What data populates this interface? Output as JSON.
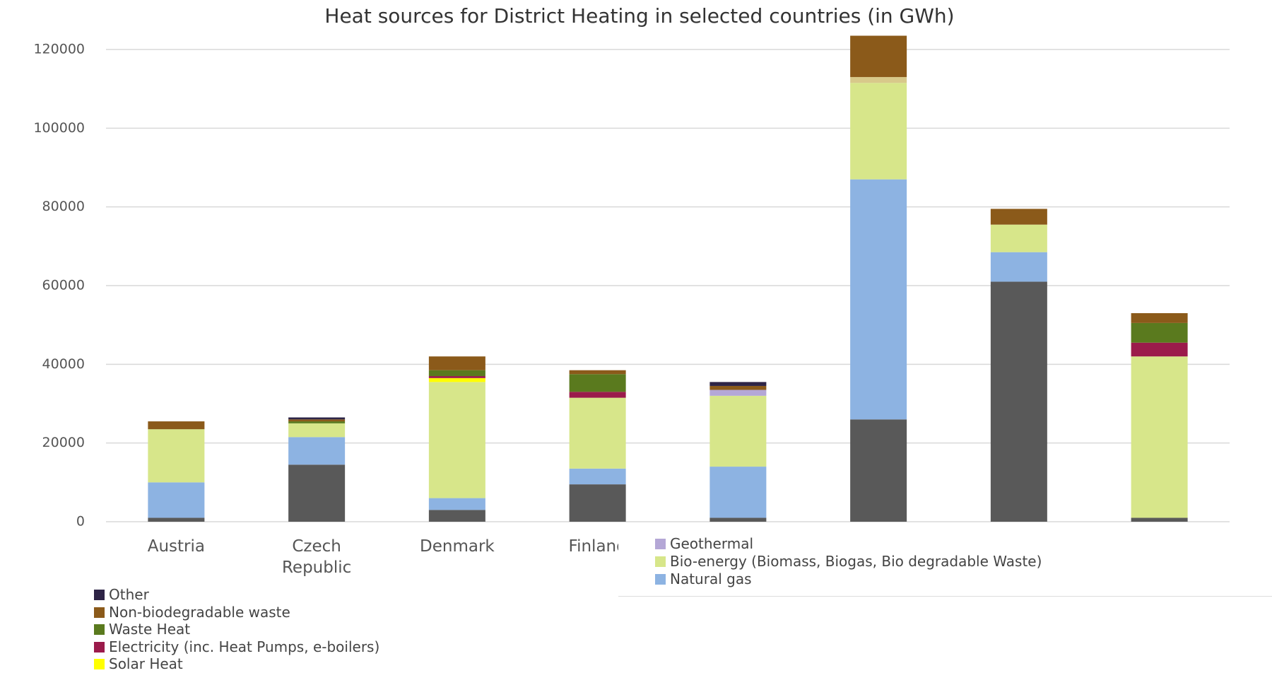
{
  "chart_data": {
    "type": "stacked_bar",
    "title": "Heat sources for District Heating in selected countries (in GWh)",
    "categories": [
      "Austria",
      "Czech Republic",
      "Denmark",
      "Finland",
      null,
      null,
      null,
      null
    ],
    "ylim": [
      0,
      120000
    ],
    "yticks": [
      0,
      20000,
      40000,
      60000,
      80000,
      100000,
      120000
    ],
    "grid": true,
    "series": [
      {
        "color": "#595959",
        "values": [
          1000,
          14500,
          3000,
          9500,
          1000,
          26000,
          61000,
          1000
        ]
      },
      {
        "name": "Natural gas",
        "color": "#8db3e2",
        "values": [
          9000,
          7000,
          3000,
          4000,
          13000,
          61000,
          7500,
          0
        ]
      },
      {
        "name": "Bio-energy (Biomass, Biogas, Bio degradable Waste)",
        "color": "#d7e68a",
        "values": [
          13500,
          3500,
          29500,
          18000,
          18000,
          24500,
          7000,
          41000
        ]
      },
      {
        "name": "Geothermal",
        "color": "#b4a7d6",
        "values": [
          0,
          0,
          0,
          0,
          1500,
          0,
          0,
          0
        ]
      },
      {
        "name": "Solar Heat",
        "color": "#ffff00",
        "values": [
          0,
          0,
          1000,
          0,
          0,
          0,
          0,
          0
        ]
      },
      {
        "name": "Electricity (inc. Heat Pumps, e-boilers)",
        "color": "#9b1b4b",
        "values": [
          0,
          0,
          500,
          1500,
          0,
          0,
          0,
          3500
        ]
      },
      {
        "name": "Waste Heat",
        "color": "#5a7a1e",
        "values": [
          0,
          500,
          1500,
          4500,
          0,
          0,
          0,
          5000
        ]
      },
      {
        "color": "#d8c98a",
        "values": [
          0,
          0,
          0,
          0,
          0,
          1500,
          0,
          0
        ]
      },
      {
        "name": "Non-biodegradable waste",
        "color": "#8b5a1a",
        "values": [
          2000,
          500,
          3500,
          1000,
          1000,
          10500,
          4000,
          2500
        ]
      },
      {
        "name": "Other",
        "color": "#2e2446",
        "values": [
          0,
          500,
          0,
          0,
          1000,
          0,
          0,
          0
        ]
      }
    ]
  }
}
